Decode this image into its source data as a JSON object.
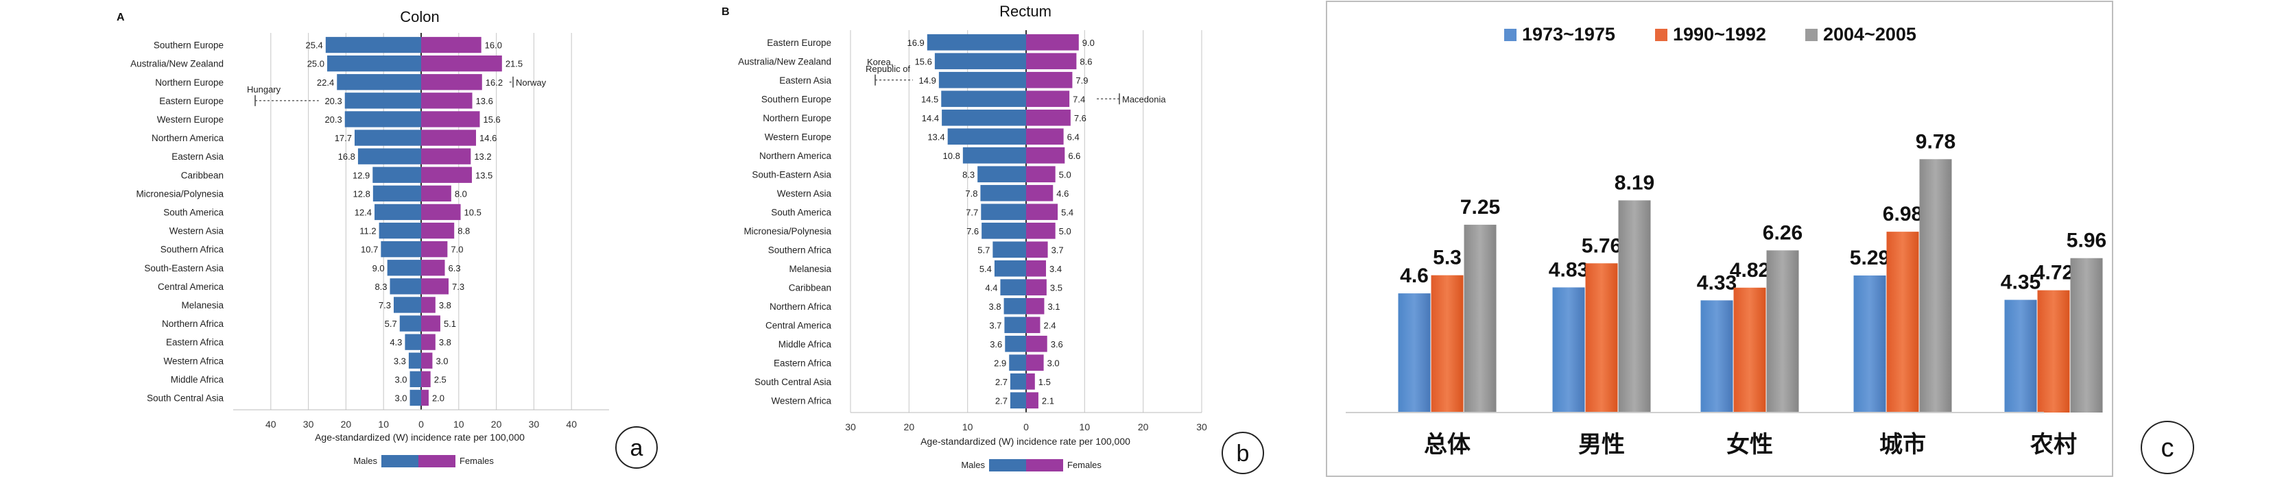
{
  "chart_data": [
    {
      "type": "bar",
      "orientation": "horizontal-diverging",
      "panel_letter": "A",
      "title": "Colon",
      "xlabel": "Age-standardized (W) incidence rate per 100,000",
      "xticks": [
        "40",
        "30",
        "20",
        "10",
        "0",
        "10",
        "20",
        "30",
        "40"
      ],
      "xlim": [
        -50,
        50
      ],
      "categories": [
        "Southern Europe",
        "Australia/New Zealand",
        "Northern Europe",
        "Eastern Europe",
        "Western Europe",
        "Northern America",
        "Eastern Asia",
        "Caribbean",
        "Micronesia/Polynesia",
        "South America",
        "Western Asia",
        "Southern Africa",
        "South-Eastern Asia",
        "Central America",
        "Melanesia",
        "Northern Africa",
        "Eastern Africa",
        "Western Africa",
        "Middle Africa",
        "South Central Asia"
      ],
      "series": [
        {
          "name": "Males",
          "color": "#3d73b0",
          "values": [
            25.4,
            25.0,
            22.4,
            20.3,
            20.3,
            17.7,
            16.8,
            12.9,
            12.8,
            12.4,
            11.2,
            10.7,
            9.0,
            8.3,
            7.3,
            5.7,
            4.3,
            3.3,
            3.0,
            3.0
          ]
        },
        {
          "name": "Females",
          "color": "#9b3a9f",
          "values": [
            16.0,
            21.5,
            16.2,
            13.6,
            15.6,
            14.6,
            13.2,
            13.5,
            8.0,
            10.5,
            8.8,
            7.0,
            6.3,
            7.3,
            3.8,
            5.1,
            3.8,
            3.0,
            2.5,
            2.0
          ]
        }
      ],
      "annotations": [
        {
          "text": "Hungary",
          "series": "Males",
          "category": "Eastern Europe"
        },
        {
          "text": "Norway",
          "series": "Females",
          "category": "Northern Europe"
        }
      ],
      "legend": [
        "Males",
        "Females"
      ],
      "panel_label": "a"
    },
    {
      "type": "bar",
      "orientation": "horizontal-diverging",
      "panel_letter": "B",
      "title": "Rectum",
      "xlabel": "Age-standardized (W) incidence rate per 100,000",
      "xticks": [
        "30",
        "20",
        "10",
        "0",
        "10",
        "20",
        "30"
      ],
      "xlim": [
        -30,
        30
      ],
      "categories": [
        "Eastern Europe",
        "Australia/New Zealand",
        "Eastern Asia",
        "Southern Europe",
        "Northern Europe",
        "Western Europe",
        "Northern America",
        "South-Eastern Asia",
        "Western Asia",
        "South America",
        "Micronesia/Polynesia",
        "Southern Africa",
        "Melanesia",
        "Caribbean",
        "Northern Africa",
        "Central America",
        "Middle Africa",
        "Eastern Africa",
        "South Central Asia",
        "Western Africa"
      ],
      "series": [
        {
          "name": "Males",
          "color": "#3d73b0",
          "values": [
            16.9,
            15.6,
            14.9,
            14.5,
            14.4,
            13.4,
            10.8,
            8.3,
            7.8,
            7.7,
            7.6,
            5.7,
            5.4,
            4.4,
            3.8,
            3.7,
            3.6,
            2.9,
            2.7,
            2.7
          ]
        },
        {
          "name": "Females",
          "color": "#9b3a9f",
          "values": [
            9.0,
            8.6,
            7.9,
            7.4,
            7.6,
            6.4,
            6.6,
            5.0,
            4.6,
            5.4,
            5.0,
            3.7,
            3.4,
            3.5,
            3.1,
            2.4,
            3.6,
            3.0,
            1.5,
            2.1
          ]
        }
      ],
      "annotations": [
        {
          "text": "Korea,",
          "text2": "Republic of",
          "series": "Males",
          "category": "Eastern Asia"
        },
        {
          "text": "Macedonia",
          "series": "Females",
          "category": "Southern Europe"
        }
      ],
      "legend": [
        "Males",
        "Females"
      ],
      "panel_label": "b"
    },
    {
      "type": "bar",
      "orientation": "vertical",
      "categories": [
        "总体",
        "男性",
        "女性",
        "城市",
        "农村"
      ],
      "series": [
        {
          "name": "1973~1975",
          "color": "#5b8fd0",
          "values": [
            4.6,
            4.83,
            4.33,
            5.29,
            4.35
          ],
          "labels": [
            "4.6",
            "4.83",
            "4.33",
            "5.29",
            "4.35"
          ]
        },
        {
          "name": "1990~1992",
          "color": "#e8683a",
          "values": [
            5.3,
            5.76,
            4.82,
            6.98,
            4.72
          ],
          "labels": [
            "5.3",
            "5.76",
            "4.82",
            "6.98",
            "4.72"
          ]
        },
        {
          "name": "2004~2005",
          "color": "#9c9c9c",
          "values": [
            7.25,
            8.19,
            6.26,
            9.78,
            5.96
          ],
          "labels": [
            "7.25",
            "8.19",
            "6.26",
            "9.78",
            "5.96"
          ]
        }
      ],
      "ylim": [
        0,
        11
      ],
      "legend_position": "top",
      "panel_label": "c"
    }
  ]
}
